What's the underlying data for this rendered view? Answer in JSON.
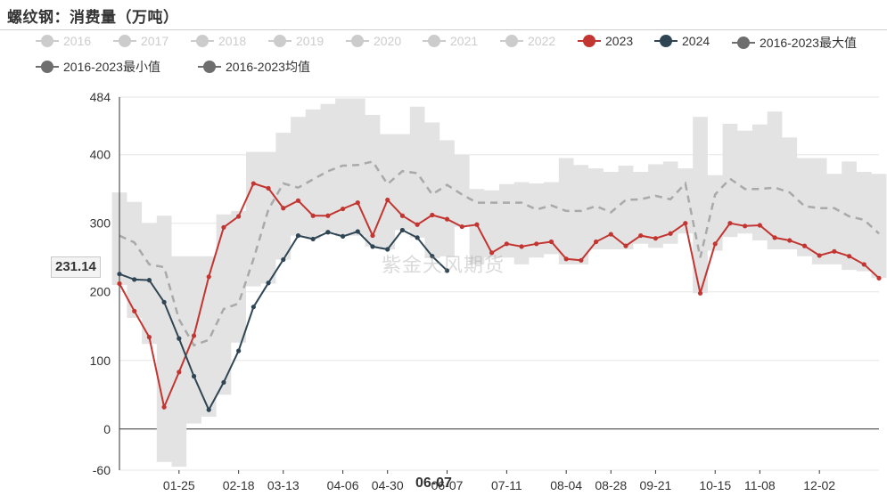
{
  "title": "螺纹钢：消费量（万吨）",
  "watermark": "紫金天风期货",
  "y_readout": "231.14",
  "x_readout": "06-07",
  "colors": {
    "y2023": "#c23531",
    "y2024": "#2f4554",
    "band": "#e3e3e3",
    "mean": "#a9a9a9",
    "inactive_legend": "#cccccc",
    "legend_gray": "#6e6e6e"
  },
  "chart_data": {
    "type": "line",
    "title": "螺纹钢：消费量（万吨）",
    "ylim": [
      -60,
      484
    ],
    "yticks": [
      -60,
      0,
      100,
      200,
      300,
      400,
      484
    ],
    "x_range": [
      1,
      52
    ],
    "xticks": [
      {
        "x": 5,
        "label": "01-25"
      },
      {
        "x": 9,
        "label": "02-18"
      },
      {
        "x": 12,
        "label": "03-13"
      },
      {
        "x": 16,
        "label": "04-06"
      },
      {
        "x": 19,
        "label": "04-30"
      },
      {
        "x": 23,
        "label": "06-07"
      },
      {
        "x": 27,
        "label": "07-11"
      },
      {
        "x": 31,
        "label": "08-04"
      },
      {
        "x": 34,
        "label": "08-28"
      },
      {
        "x": 37,
        "label": "09-21"
      },
      {
        "x": 41,
        "label": "10-15"
      },
      {
        "x": 44,
        "label": "11-08"
      },
      {
        "x": 48,
        "label": "12-02"
      }
    ],
    "grid": true,
    "legend_position": "top",
    "legend": [
      {
        "label": "2016",
        "active": false
      },
      {
        "label": "2017",
        "active": false
      },
      {
        "label": "2018",
        "active": false
      },
      {
        "label": "2019",
        "active": false
      },
      {
        "label": "2020",
        "active": false
      },
      {
        "label": "2021",
        "active": false
      },
      {
        "label": "2022",
        "active": false
      },
      {
        "label": "2023",
        "active": true
      },
      {
        "label": "2024",
        "active": true
      },
      {
        "label": "2016-2023最大值",
        "active": true
      },
      {
        "label": "2016-2023最小值",
        "active": true
      },
      {
        "label": "2016-2023均值",
        "active": true
      }
    ],
    "series": [
      {
        "name": "2023",
        "x": [
          1,
          2,
          3,
          4,
          5,
          6,
          7,
          8,
          9,
          10,
          11,
          12,
          13,
          14,
          15,
          16,
          17,
          18,
          19,
          20,
          21,
          22,
          23,
          24,
          25,
          26,
          27,
          28,
          29,
          30,
          31,
          32,
          33,
          34,
          35,
          36,
          37,
          38,
          39,
          40,
          41,
          42,
          43,
          44,
          45,
          46,
          47,
          48,
          49,
          50,
          51,
          52
        ],
        "values": [
          212,
          172,
          134,
          32,
          83,
          136,
          222,
          294,
          310,
          358,
          351,
          322,
          333,
          311,
          311,
          321,
          330,
          282,
          334,
          311,
          298,
          312,
          306,
          295,
          298,
          257,
          270,
          266,
          270,
          273,
          248,
          246,
          273,
          284,
          267,
          282,
          278,
          285,
          300,
          198,
          270,
          300,
          296,
          297,
          279,
          275,
          267,
          253,
          259,
          252,
          240,
          220
        ]
      },
      {
        "name": "2024",
        "x": [
          1,
          2,
          3,
          4,
          5,
          6,
          7,
          8,
          9,
          10,
          11,
          12,
          13,
          14,
          15,
          16,
          17,
          18,
          19,
          20,
          21,
          22,
          23
        ],
        "values": [
          226,
          218,
          217,
          185,
          132,
          77,
          28,
          68,
          114,
          178,
          213,
          247,
          282,
          277,
          287,
          281,
          288,
          266,
          262,
          290,
          279,
          252,
          231
        ]
      },
      {
        "name": "2016-2023最大值",
        "x": [
          1,
          2,
          3,
          4,
          5,
          6,
          7,
          8,
          9,
          10,
          11,
          12,
          13,
          14,
          15,
          16,
          17,
          18,
          19,
          20,
          21,
          22,
          23,
          24,
          25,
          26,
          27,
          28,
          29,
          30,
          31,
          32,
          33,
          34,
          35,
          36,
          37,
          38,
          39,
          40,
          41,
          42,
          43,
          44,
          45,
          46,
          47,
          48,
          49,
          50,
          51,
          52
        ],
        "values": [
          345,
          331,
          300,
          311,
          252,
          252,
          252,
          313,
          318,
          404,
          404,
          432,
          455,
          466,
          474,
          482,
          482,
          458,
          430,
          430,
          470,
          447,
          421,
          400,
          350,
          348,
          357,
          360,
          358,
          360,
          395,
          385,
          380,
          375,
          384,
          375,
          386,
          390,
          380,
          455,
          370,
          445,
          435,
          444,
          463,
          425,
          395,
          395,
          372,
          390,
          375,
          372
        ]
      },
      {
        "name": "2016-2023最小值",
        "x": [
          1,
          2,
          3,
          4,
          5,
          6,
          7,
          8,
          9,
          10,
          11,
          12,
          13,
          14,
          15,
          16,
          17,
          18,
          19,
          20,
          21,
          22,
          23,
          24,
          25,
          26,
          27,
          28,
          29,
          30,
          31,
          32,
          33,
          34,
          35,
          36,
          37,
          38,
          39,
          40,
          41,
          42,
          43,
          44,
          45,
          46,
          47,
          48,
          49,
          50,
          51,
          52
        ],
        "values": [
          210,
          162,
          124,
          -48,
          -55,
          8,
          18,
          50,
          126,
          208,
          212,
          247,
          282,
          277,
          287,
          281,
          282,
          266,
          262,
          290,
          279,
          252,
          252,
          295,
          240,
          250,
          250,
          240,
          250,
          255,
          240,
          240,
          262,
          262,
          262,
          270,
          264,
          270,
          285,
          198,
          260,
          280,
          285,
          275,
          262,
          262,
          252,
          240,
          240,
          232,
          230,
          220
        ]
      },
      {
        "name": "2016-2023均值",
        "x": [
          1,
          2,
          3,
          4,
          5,
          6,
          7,
          8,
          9,
          10,
          11,
          12,
          13,
          14,
          15,
          16,
          17,
          18,
          19,
          20,
          21,
          22,
          23,
          24,
          25,
          26,
          27,
          28,
          29,
          30,
          31,
          32,
          33,
          34,
          35,
          36,
          37,
          38,
          39,
          40,
          41,
          42,
          43,
          44,
          45,
          46,
          47,
          48,
          49,
          50,
          51,
          52
        ],
        "values": [
          282,
          272,
          240,
          236,
          160,
          122,
          130,
          175,
          183,
          248,
          320,
          358,
          352,
          364,
          376,
          384,
          385,
          390,
          357,
          376,
          373,
          342,
          356,
          342,
          330,
          330,
          330,
          330,
          320,
          326,
          318,
          318,
          325,
          316,
          334,
          335,
          340,
          335,
          358,
          250,
          342,
          365,
          350,
          350,
          352,
          345,
          325,
          322,
          322,
          310,
          305,
          285
        ]
      }
    ]
  }
}
